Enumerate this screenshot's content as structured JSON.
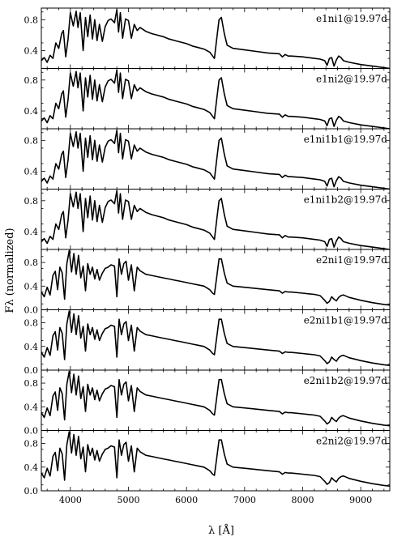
{
  "chart_data": {
    "type": "line",
    "xlabel": "λ [Å]",
    "ylabel": "Fλ (normalized)",
    "xlim": [
      3500,
      9500
    ],
    "x_ticks": [
      {
        "value": 4000,
        "label": "4000"
      },
      {
        "value": 5000,
        "label": "5000"
      },
      {
        "value": 6000,
        "label": "6000"
      },
      {
        "value": 7000,
        "label": "7000"
      },
      {
        "value": 8000,
        "label": "8000"
      },
      {
        "value": 9000,
        "label": "9000"
      }
    ],
    "panels": [
      {
        "label": "e1ni1@19.97d",
        "ylim": [
          0.17,
          0.95
        ],
        "yticks": [
          {
            "value": 0.4,
            "label": "0.4"
          },
          {
            "value": 0.8,
            "label": "0.8"
          }
        ],
        "family": "e1"
      },
      {
        "label": "e1ni2@19.97d",
        "ylim": [
          0.17,
          0.95
        ],
        "yticks": [
          {
            "value": 0.4,
            "label": "0.4"
          },
          {
            "value": 0.8,
            "label": "0.8"
          }
        ],
        "family": "e1"
      },
      {
        "label": "e1ni1b1@19.97d",
        "ylim": [
          0.17,
          0.95
        ],
        "yticks": [
          {
            "value": 0.4,
            "label": "0.4"
          },
          {
            "value": 0.8,
            "label": "0.8"
          }
        ],
        "family": "e1"
      },
      {
        "label": "e1ni1b2@19.97d",
        "ylim": [
          0.17,
          0.95
        ],
        "yticks": [
          {
            "value": 0.4,
            "label": "0.4"
          },
          {
            "value": 0.8,
            "label": "0.8"
          }
        ],
        "family": "e1"
      },
      {
        "label": "e2ni1@19.97d",
        "ylim": [
          0.0,
          1.02
        ],
        "yticks": [
          {
            "value": 0.0,
            "label": "0.0"
          },
          {
            "value": 0.4,
            "label": "0.4"
          },
          {
            "value": 0.8,
            "label": "0.8"
          }
        ],
        "family": "e2"
      },
      {
        "label": "e2ni1b1@19.97d",
        "ylim": [
          0.0,
          1.02
        ],
        "yticks": [
          {
            "value": 0.0,
            "label": "0.0"
          },
          {
            "value": 0.4,
            "label": "0.4"
          },
          {
            "value": 0.8,
            "label": "0.8"
          }
        ],
        "family": "e2"
      },
      {
        "label": "e2ni1b2@19.97d",
        "ylim": [
          0.0,
          1.02
        ],
        "yticks": [
          {
            "value": 0.0,
            "label": "0.0"
          },
          {
            "value": 0.4,
            "label": "0.4"
          },
          {
            "value": 0.8,
            "label": "0.8"
          }
        ],
        "family": "e2"
      },
      {
        "label": "e2ni2@19.97d",
        "ylim": [
          0.0,
          1.02
        ],
        "yticks": [
          {
            "value": 0.0,
            "label": "0.0"
          },
          {
            "value": 0.4,
            "label": "0.4"
          },
          {
            "value": 0.8,
            "label": "0.8"
          }
        ],
        "family": "e2"
      }
    ],
    "series": {
      "e1": {
        "x": [
          3500,
          3550,
          3600,
          3650,
          3700,
          3750,
          3800,
          3850,
          3880,
          3920,
          3960,
          4000,
          4050,
          4100,
          4130,
          4170,
          4220,
          4260,
          4300,
          4340,
          4380,
          4420,
          4460,
          4500,
          4550,
          4600,
          4650,
          4700,
          4760,
          4800,
          4830,
          4860,
          4900,
          4950,
          5000,
          5050,
          5100,
          5150,
          5200,
          5300,
          5400,
          5500,
          5600,
          5700,
          5800,
          5900,
          6000,
          6100,
          6200,
          6300,
          6400,
          6450,
          6480,
          6520,
          6560,
          6600,
          6650,
          6700,
          6800,
          7000,
          7200,
          7400,
          7600,
          7650,
          7700,
          7750,
          7800,
          8000,
          8200,
          8300,
          8380,
          8420,
          8460,
          8500,
          8540,
          8580,
          8620,
          8660,
          8700,
          8800,
          9000,
          9200,
          9400,
          9500
        ],
        "y": [
          0.27,
          0.31,
          0.25,
          0.34,
          0.3,
          0.5,
          0.43,
          0.62,
          0.66,
          0.32,
          0.55,
          0.89,
          0.72,
          0.91,
          0.7,
          0.89,
          0.4,
          0.83,
          0.58,
          0.86,
          0.55,
          0.8,
          0.53,
          0.74,
          0.52,
          0.71,
          0.79,
          0.81,
          0.76,
          0.93,
          0.64,
          0.89,
          0.56,
          0.81,
          0.79,
          0.56,
          0.74,
          0.66,
          0.7,
          0.65,
          0.62,
          0.6,
          0.58,
          0.55,
          0.53,
          0.51,
          0.49,
          0.46,
          0.44,
          0.42,
          0.38,
          0.33,
          0.3,
          0.55,
          0.8,
          0.83,
          0.62,
          0.47,
          0.43,
          0.41,
          0.39,
          0.37,
          0.36,
          0.32,
          0.35,
          0.33,
          0.33,
          0.32,
          0.3,
          0.29,
          0.27,
          0.21,
          0.3,
          0.31,
          0.2,
          0.28,
          0.33,
          0.31,
          0.27,
          0.25,
          0.22,
          0.2,
          0.18,
          0.17
        ]
      },
      "e2": {
        "x": [
          3500,
          3550,
          3600,
          3650,
          3700,
          3740,
          3780,
          3820,
          3860,
          3900,
          3940,
          3980,
          4020,
          4060,
          4100,
          4140,
          4180,
          4220,
          4260,
          4300,
          4340,
          4380,
          4420,
          4460,
          4500,
          4550,
          4600,
          4650,
          4700,
          4760,
          4800,
          4840,
          4880,
          4920,
          4960,
          5000,
          5050,
          5100,
          5150,
          5200,
          5300,
          5400,
          5500,
          5600,
          5700,
          5800,
          5900,
          6000,
          6100,
          6200,
          6300,
          6400,
          6450,
          6480,
          6520,
          6560,
          6600,
          6650,
          6700,
          6800,
          7000,
          7200,
          7400,
          7600,
          7650,
          7700,
          7750,
          7800,
          8000,
          8200,
          8300,
          8380,
          8420,
          8460,
          8500,
          8540,
          8580,
          8620,
          8660,
          8700,
          8800,
          9000,
          9200,
          9400,
          9500
        ],
        "y": [
          0.3,
          0.22,
          0.38,
          0.25,
          0.58,
          0.65,
          0.34,
          0.72,
          0.62,
          0.18,
          0.78,
          1.0,
          0.64,
          0.95,
          0.6,
          0.92,
          0.54,
          0.74,
          0.32,
          0.78,
          0.6,
          0.72,
          0.52,
          0.68,
          0.5,
          0.62,
          0.7,
          0.72,
          0.76,
          0.74,
          0.22,
          0.86,
          0.6,
          0.78,
          0.82,
          0.5,
          0.76,
          0.32,
          0.72,
          0.66,
          0.6,
          0.58,
          0.56,
          0.54,
          0.52,
          0.5,
          0.48,
          0.46,
          0.44,
          0.42,
          0.4,
          0.34,
          0.28,
          0.26,
          0.55,
          0.86,
          0.86,
          0.62,
          0.45,
          0.4,
          0.38,
          0.36,
          0.34,
          0.32,
          0.28,
          0.31,
          0.3,
          0.3,
          0.28,
          0.26,
          0.24,
          0.16,
          0.11,
          0.14,
          0.22,
          0.18,
          0.15,
          0.21,
          0.24,
          0.25,
          0.21,
          0.16,
          0.12,
          0.09,
          0.08
        ]
      }
    }
  }
}
